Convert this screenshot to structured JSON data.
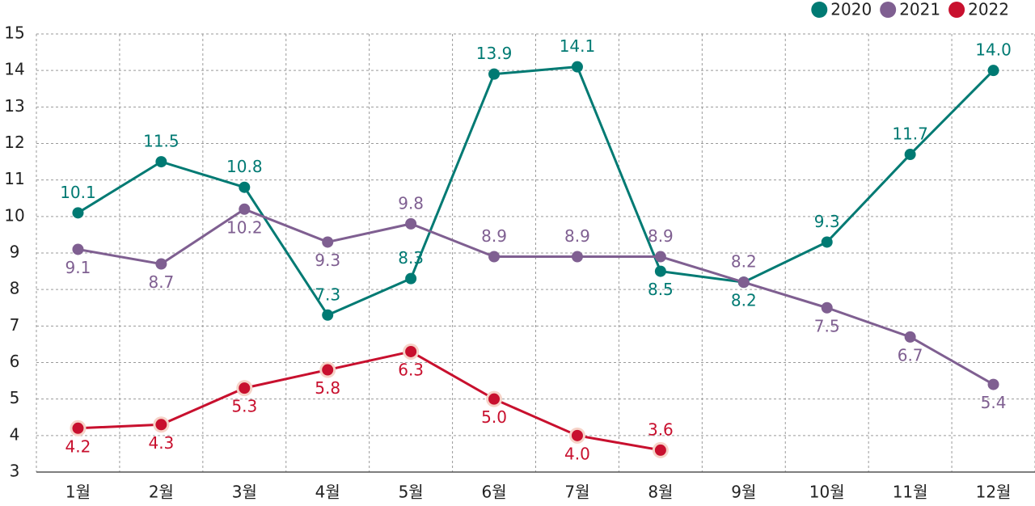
{
  "chart_data": {
    "type": "line",
    "categories": [
      "1월",
      "2월",
      "3월",
      "4월",
      "5월",
      "6월",
      "7월",
      "8월",
      "9월",
      "10월",
      "11월",
      "12월"
    ],
    "series": [
      {
        "name": "2020",
        "color": "#007a73",
        "values": [
          10.1,
          11.5,
          10.8,
          7.3,
          8.3,
          13.9,
          14.1,
          8.5,
          8.2,
          9.3,
          11.7,
          14.0
        ],
        "value_labels": [
          "10.1",
          "11.5",
          "10.8",
          "7.3",
          "8.3",
          "13.9",
          "14.1",
          "8.5",
          "8.2",
          "9.3",
          "11.7",
          "14.0"
        ]
      },
      {
        "name": "2021",
        "color": "#7f5f91",
        "values": [
          9.1,
          8.7,
          10.2,
          9.3,
          9.8,
          8.9,
          8.9,
          8.9,
          8.2,
          7.5,
          6.7,
          5.4
        ],
        "value_labels": [
          "9.1",
          "8.7",
          "10.2",
          "9.3",
          "9.8",
          "8.9",
          "8.9",
          "8.9",
          "8.2",
          "7.5",
          "6.7",
          "5.4"
        ]
      },
      {
        "name": "2022",
        "color": "#c8102e",
        "values": [
          4.2,
          4.3,
          5.3,
          5.8,
          6.3,
          5.0,
          4.0,
          3.6,
          null,
          null,
          null,
          null
        ],
        "value_labels": [
          "4.2",
          "4.3",
          "5.3",
          "5.8",
          "6.3",
          "5.0",
          "4.0",
          "3.6",
          null,
          null,
          null,
          null
        ]
      }
    ],
    "ylim": [
      3,
      15
    ],
    "yticks": [
      3,
      4,
      5,
      6,
      7,
      8,
      9,
      10,
      11,
      12,
      13,
      14,
      15
    ],
    "grid": true,
    "legend": "top-right"
  }
}
